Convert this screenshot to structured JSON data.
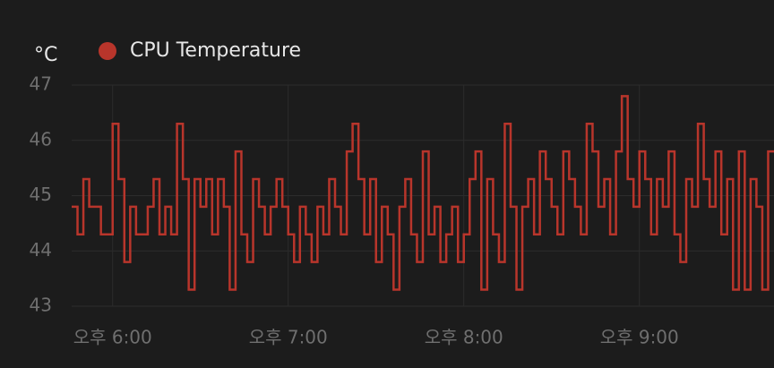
{
  "chart_data": {
    "type": "step-line",
    "y_unit": "°C",
    "x": [
      "17:46",
      "17:48",
      "17:50",
      "17:52",
      "17:54",
      "17:56",
      "17:58",
      "18:00",
      "18:02",
      "18:04",
      "18:06",
      "18:08",
      "18:10",
      "18:12",
      "18:14",
      "18:16",
      "18:18",
      "18:20",
      "18:22",
      "18:24",
      "18:26",
      "18:28",
      "18:30",
      "18:32",
      "18:34",
      "18:36",
      "18:38",
      "18:40",
      "18:42",
      "18:44",
      "18:46",
      "18:48",
      "18:50",
      "18:52",
      "18:54",
      "18:56",
      "18:58",
      "19:00",
      "19:02",
      "19:04",
      "19:06",
      "19:08",
      "19:10",
      "19:12",
      "19:14",
      "19:16",
      "19:18",
      "19:20",
      "19:22",
      "19:24",
      "19:26",
      "19:28",
      "19:30",
      "19:32",
      "19:34",
      "19:36",
      "19:38",
      "19:40",
      "19:42",
      "19:44",
      "19:46",
      "19:48",
      "19:50",
      "19:52",
      "19:54",
      "19:56",
      "19:58",
      "20:00",
      "20:02",
      "20:04",
      "20:06",
      "20:08",
      "20:10",
      "20:12",
      "20:14",
      "20:16",
      "20:18",
      "20:20",
      "20:22",
      "20:24",
      "20:26",
      "20:28",
      "20:30",
      "20:32",
      "20:34",
      "20:36",
      "20:38",
      "20:40",
      "20:42",
      "20:44",
      "20:46",
      "20:48",
      "20:50",
      "20:52",
      "20:54",
      "20:56",
      "20:58",
      "21:00",
      "21:02",
      "21:04",
      "21:06",
      "21:08",
      "21:10",
      "21:12",
      "21:14",
      "21:16",
      "21:18",
      "21:20",
      "21:22",
      "21:24",
      "21:26",
      "21:28",
      "21:30",
      "21:32",
      "21:34",
      "21:36",
      "21:38",
      "21:40",
      "21:42",
      "21:44"
    ],
    "series": [
      {
        "name": "CPU Temperature",
        "color": "#b8352b",
        "values": [
          44.8,
          44.3,
          45.3,
          44.8,
          44.8,
          44.3,
          44.3,
          46.3,
          45.3,
          43.8,
          44.8,
          44.3,
          44.3,
          44.8,
          45.3,
          44.3,
          44.8,
          44.3,
          46.3,
          45.3,
          43.3,
          45.3,
          44.8,
          45.3,
          44.3,
          45.3,
          44.8,
          43.3,
          45.8,
          44.3,
          43.8,
          45.3,
          44.8,
          44.3,
          44.8,
          45.3,
          44.8,
          44.3,
          43.8,
          44.8,
          44.3,
          43.8,
          44.8,
          44.3,
          45.3,
          44.8,
          44.3,
          45.8,
          46.3,
          45.3,
          44.3,
          45.3,
          43.8,
          44.8,
          44.3,
          43.3,
          44.8,
          45.3,
          44.3,
          43.8,
          45.8,
          44.3,
          44.8,
          43.8,
          44.3,
          44.8,
          43.8,
          44.3,
          45.3,
          45.8,
          43.3,
          45.3,
          44.3,
          43.8,
          46.3,
          44.8,
          43.3,
          44.8,
          45.3,
          44.3,
          45.8,
          45.3,
          44.8,
          44.3,
          45.8,
          45.3,
          44.8,
          44.3,
          46.3,
          45.8,
          44.8,
          45.3,
          44.3,
          45.8,
          46.8,
          45.3,
          44.8,
          45.8,
          45.3,
          44.3,
          45.3,
          44.8,
          45.8,
          44.3,
          43.8,
          45.3,
          44.8,
          46.3,
          45.3,
          44.8,
          45.8,
          44.3,
          45.3,
          43.3,
          45.8,
          43.3,
          45.3,
          44.8,
          43.3,
          45.8
        ]
      }
    ],
    "xlim": [
      "17:46",
      "21:46"
    ],
    "xticks": [
      {
        "value": "18:00",
        "label": "오후 6:00"
      },
      {
        "value": "19:00",
        "label": "오후 7:00"
      },
      {
        "value": "20:00",
        "label": "오후 8:00"
      },
      {
        "value": "21:00",
        "label": "오후 9:00"
      }
    ],
    "ylim": [
      43,
      47
    ],
    "yticks": [
      43,
      44,
      45,
      46,
      47
    ],
    "grid": true
  }
}
